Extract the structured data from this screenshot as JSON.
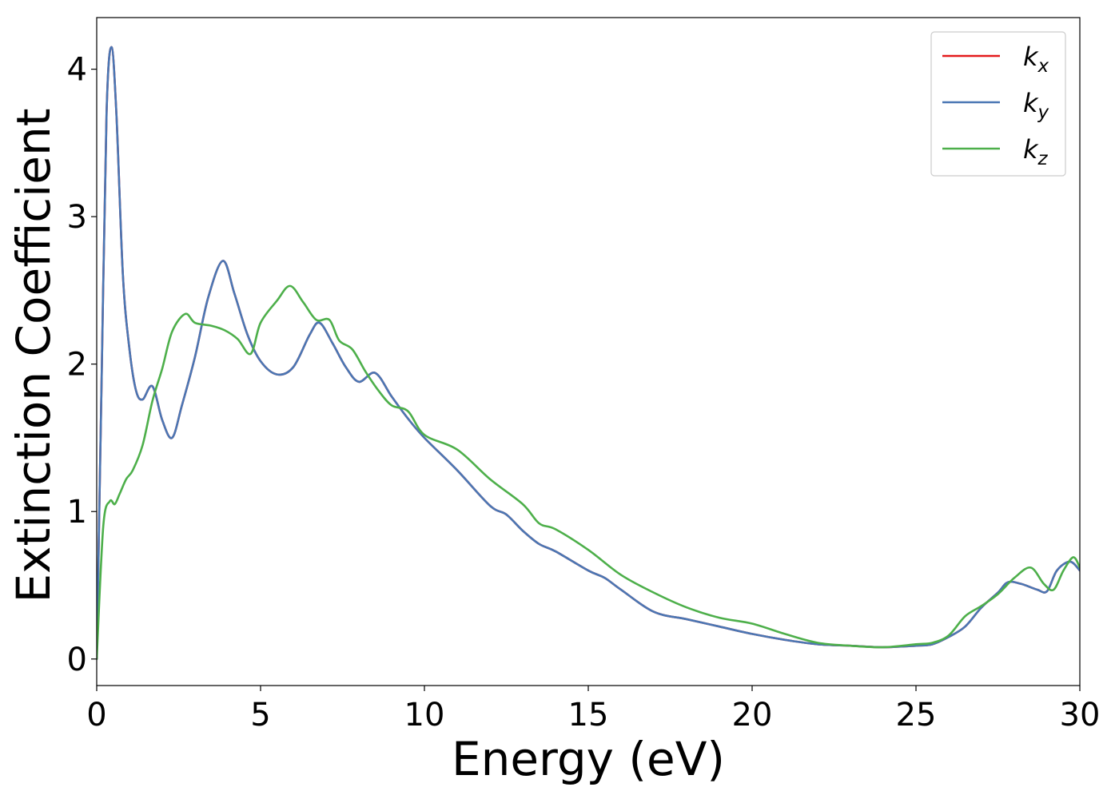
{
  "chart_data": {
    "type": "line",
    "title": "",
    "xlabel": "Energy (eV)",
    "ylabel": "Extinction Coefficient",
    "xlim": [
      0,
      30
    ],
    "ylim": [
      -0.18,
      4.35
    ],
    "xticks": [
      0,
      5,
      10,
      15,
      20,
      25,
      30
    ],
    "xtick_labels": [
      "0",
      "5",
      "10",
      "15",
      "20",
      "25",
      "30"
    ],
    "yticks": [
      0,
      1,
      2,
      3,
      4
    ],
    "ytick_labels": [
      "0",
      "1",
      "2",
      "3",
      "4"
    ],
    "grid": false,
    "legend_position": "top-right",
    "series": [
      {
        "name": "k",
        "subscript": "x",
        "color": "#e41a1c",
        "x": [
          0,
          0.15,
          0.3,
          0.45,
          0.6,
          0.8,
          1.0,
          1.2,
          1.4,
          1.7,
          2.0,
          2.3,
          2.6,
          3.0,
          3.4,
          3.85,
          4.2,
          4.6,
          5.0,
          5.5,
          6.0,
          6.5,
          6.8,
          7.2,
          7.6,
          8.0,
          8.5,
          9.0,
          9.5,
          10.0,
          11.0,
          12.0,
          12.5,
          13.0,
          13.5,
          14.0,
          15.0,
          15.5,
          16.0,
          17.0,
          18.0,
          19.0,
          20.0,
          21.0,
          22.0,
          23.0,
          24.0,
          25.0,
          25.5,
          26.0,
          26.5,
          27.0,
          27.5,
          27.8,
          28.2,
          28.7,
          29.0,
          29.3,
          29.7,
          30.0
        ],
        "y": [
          0.0,
          1.9,
          3.7,
          4.15,
          3.7,
          2.6,
          2.1,
          1.82,
          1.76,
          1.85,
          1.62,
          1.5,
          1.72,
          2.05,
          2.45,
          2.7,
          2.48,
          2.2,
          2.02,
          1.93,
          1.98,
          2.2,
          2.28,
          2.14,
          1.98,
          1.88,
          1.94,
          1.78,
          1.63,
          1.5,
          1.28,
          1.04,
          0.98,
          0.87,
          0.78,
          0.73,
          0.6,
          0.55,
          0.47,
          0.32,
          0.27,
          0.22,
          0.17,
          0.13,
          0.1,
          0.09,
          0.08,
          0.09,
          0.1,
          0.15,
          0.22,
          0.35,
          0.45,
          0.52,
          0.51,
          0.47,
          0.46,
          0.6,
          0.66,
          0.6
        ]
      },
      {
        "name": "k",
        "subscript": "y",
        "color": "#4a77b4",
        "x": [
          0,
          0.15,
          0.3,
          0.45,
          0.6,
          0.8,
          1.0,
          1.2,
          1.4,
          1.7,
          2.0,
          2.3,
          2.6,
          3.0,
          3.4,
          3.85,
          4.2,
          4.6,
          5.0,
          5.5,
          6.0,
          6.5,
          6.8,
          7.2,
          7.6,
          8.0,
          8.5,
          9.0,
          9.5,
          10.0,
          11.0,
          12.0,
          12.5,
          13.0,
          13.5,
          14.0,
          15.0,
          15.5,
          16.0,
          17.0,
          18.0,
          19.0,
          20.0,
          21.0,
          22.0,
          23.0,
          24.0,
          25.0,
          25.5,
          26.0,
          26.5,
          27.0,
          27.5,
          27.8,
          28.2,
          28.7,
          29.0,
          29.3,
          29.7,
          30.0
        ],
        "y": [
          0.0,
          1.9,
          3.7,
          4.15,
          3.7,
          2.6,
          2.1,
          1.82,
          1.76,
          1.85,
          1.62,
          1.5,
          1.72,
          2.05,
          2.45,
          2.7,
          2.48,
          2.2,
          2.02,
          1.93,
          1.98,
          2.2,
          2.28,
          2.14,
          1.98,
          1.88,
          1.94,
          1.78,
          1.63,
          1.5,
          1.28,
          1.04,
          0.98,
          0.87,
          0.78,
          0.73,
          0.6,
          0.55,
          0.47,
          0.32,
          0.27,
          0.22,
          0.17,
          0.13,
          0.1,
          0.09,
          0.08,
          0.09,
          0.1,
          0.15,
          0.22,
          0.35,
          0.45,
          0.52,
          0.51,
          0.47,
          0.46,
          0.6,
          0.66,
          0.6
        ]
      },
      {
        "name": "k",
        "subscript": "z",
        "color": "#4daf4a",
        "x": [
          0,
          0.2,
          0.4,
          0.55,
          0.7,
          0.9,
          1.1,
          1.4,
          1.7,
          2.0,
          2.3,
          2.7,
          3.0,
          3.5,
          3.9,
          4.3,
          4.7,
          5.0,
          5.5,
          5.9,
          6.3,
          6.7,
          7.1,
          7.4,
          7.8,
          8.2,
          8.6,
          9.0,
          9.5,
          10.0,
          11.0,
          12.0,
          13.0,
          13.5,
          14.0,
          15.0,
          16.0,
          17.0,
          18.0,
          19.0,
          20.0,
          21.0,
          22.0,
          23.0,
          24.0,
          25.0,
          25.5,
          26.0,
          26.5,
          27.0,
          27.5,
          28.0,
          28.5,
          28.9,
          29.2,
          29.5,
          29.8,
          30.0
        ],
        "y": [
          0.0,
          0.9,
          1.07,
          1.05,
          1.12,
          1.22,
          1.28,
          1.45,
          1.75,
          1.97,
          2.22,
          2.34,
          2.28,
          2.26,
          2.23,
          2.17,
          2.07,
          2.28,
          2.43,
          2.53,
          2.42,
          2.3,
          2.3,
          2.16,
          2.1,
          1.95,
          1.82,
          1.72,
          1.68,
          1.52,
          1.42,
          1.22,
          1.05,
          0.92,
          0.88,
          0.74,
          0.57,
          0.45,
          0.35,
          0.28,
          0.24,
          0.17,
          0.11,
          0.09,
          0.08,
          0.1,
          0.11,
          0.16,
          0.29,
          0.36,
          0.44,
          0.55,
          0.62,
          0.51,
          0.47,
          0.6,
          0.69,
          0.62
        ]
      }
    ]
  }
}
